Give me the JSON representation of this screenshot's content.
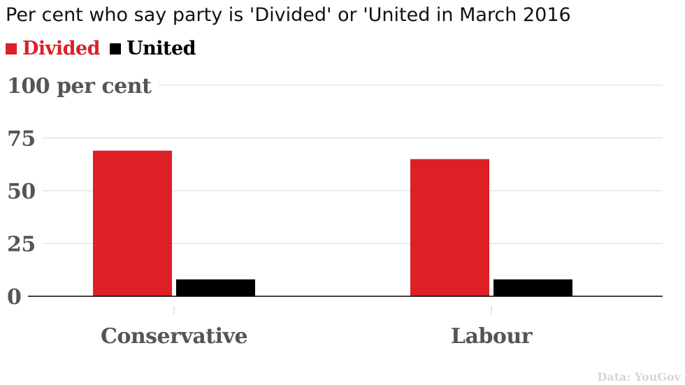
{
  "chart_data": {
    "type": "bar",
    "title": "Per cent who say party is 'Divided' or 'United in March 2016",
    "categories": [
      "Conservative",
      "Labour"
    ],
    "series": [
      {
        "name": "Divided",
        "values": [
          69,
          65
        ],
        "color": "#dd2026"
      },
      {
        "name": "United",
        "values": [
          8,
          8
        ],
        "color": "#000000"
      }
    ],
    "ylim": [
      0,
      100
    ],
    "yticks": [
      {
        "value": 0,
        "label": "0"
      },
      {
        "value": 25,
        "label": "25"
      },
      {
        "value": 50,
        "label": "50"
      },
      {
        "value": 75,
        "label": "75"
      },
      {
        "value": 100,
        "label": "100 per cent"
      }
    ],
    "grid": true,
    "legend_position": "top-left",
    "source": "Data: YouGov"
  }
}
